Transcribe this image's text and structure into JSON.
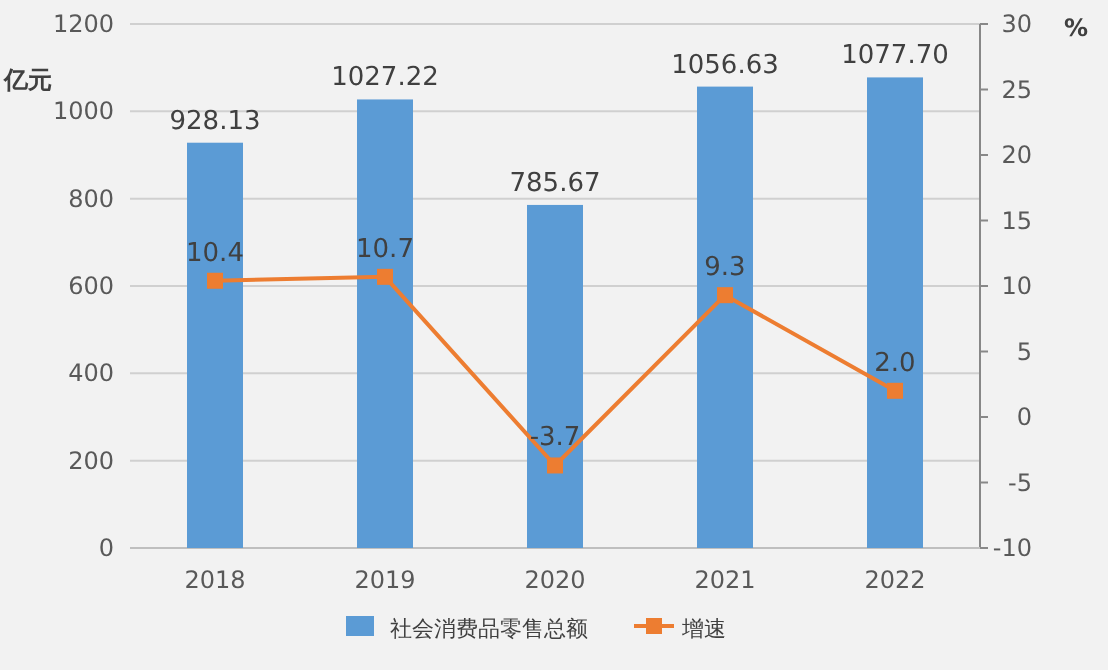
{
  "chart_data": {
    "type": "bar",
    "categories": [
      "2018",
      "2019",
      "2020",
      "2021",
      "2022"
    ],
    "series": [
      {
        "name": "社会消费品零售总额",
        "color": "#5b9bd5",
        "values": [
          928.13,
          1027.22,
          785.67,
          1056.63,
          1077.7
        ],
        "value_labels": [
          "928.13",
          "1027.22",
          "785.67",
          "1056.63",
          "1077.70"
        ]
      },
      {
        "name": "增速",
        "type": "line",
        "axis": "y2",
        "color": "#ed7d31",
        "marker": "square",
        "values": [
          10.4,
          10.7,
          -3.7,
          9.3,
          2.0
        ],
        "value_labels": [
          "10.4",
          "10.7",
          "-3.7",
          "9.3",
          "2.0"
        ]
      }
    ],
    "ylabel": "亿元",
    "y2label": "%",
    "ylim": [
      0,
      1200
    ],
    "yticks": [
      0,
      200,
      400,
      600,
      800,
      1000,
      1200
    ],
    "y2lim": [
      -10,
      30
    ],
    "y2ticks": [
      -10,
      -5,
      0,
      5,
      10,
      15,
      20,
      25,
      30
    ],
    "grid": "y",
    "legend": "bottom"
  }
}
